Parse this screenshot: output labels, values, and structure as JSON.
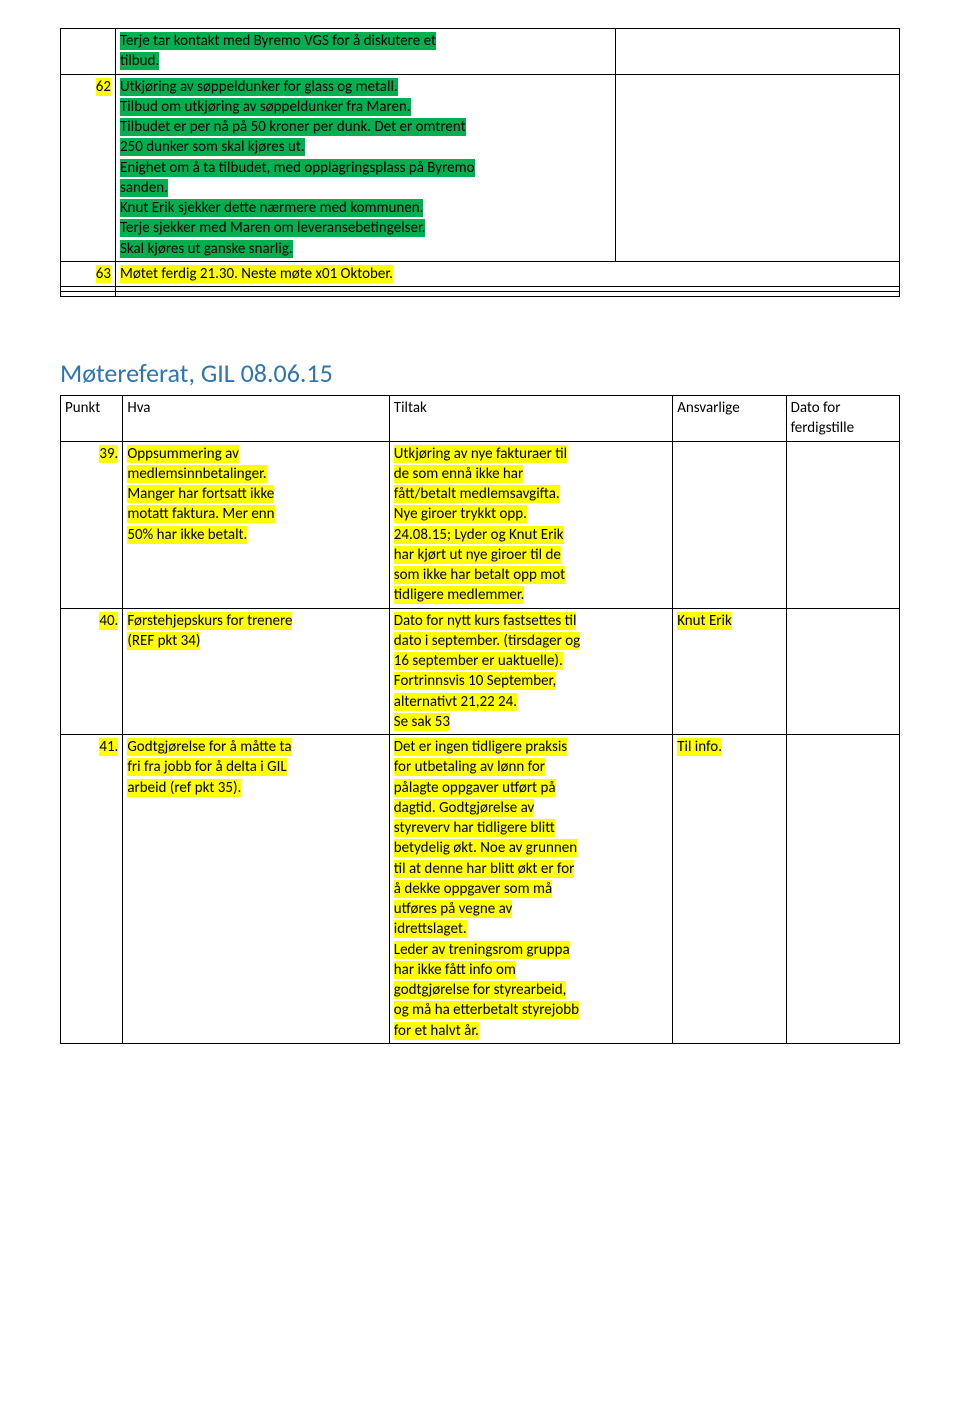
{
  "topTable": {
    "rows": [
      {
        "num": "",
        "cells": [
          {
            "segments": [
              {
                "text": "Terje tar kontakt med Byremo VGS for å diskutere et",
                "hl": "green"
              },
              {
                "br": true
              },
              {
                "text": "tilbud.",
                "hl": "green"
              }
            ]
          },
          {
            "segments": []
          }
        ]
      },
      {
        "num": "62",
        "numHl": "yellow",
        "cells": [
          {
            "segments": [
              {
                "text": "Utkjøring av søppeldunker for glass og metall.",
                "hl": "green"
              },
              {
                "br": true
              },
              {
                "text": "Tilbud om utkjøring av søppeldunker fra Maren.",
                "hl": "green"
              },
              {
                "br": true
              },
              {
                "text": "Tilbudet er per nå på 50 kroner per dunk. Det er omtrent",
                "hl": "green"
              },
              {
                "br": true
              },
              {
                "text": "250 dunker som skal kjøres ut.",
                "hl": "green"
              },
              {
                "br": true
              },
              {
                "text": "Enighet om å ta tilbudet, med opplagringsplass på Byremo",
                "hl": "green"
              },
              {
                "br": true
              },
              {
                "text": "sanden.",
                "hl": "green"
              },
              {
                "br": true
              },
              {
                "text": "Knut Erik sjekker dette nærmere med kommunen.",
                "hl": "green"
              },
              {
                "br": true
              },
              {
                "text": "Terje sjekker med Maren om leveransebetingelser.",
                "hl": "green"
              },
              {
                "br": true
              },
              {
                "text": "Skal kjøres ut ganske snarlig.",
                "hl": "green"
              }
            ]
          },
          {
            "segments": []
          }
        ]
      },
      {
        "num": "63",
        "numHl": "yellow",
        "cells": [
          {
            "segments": [
              {
                "text": "Møtet ferdig 21.30. Neste møte x01 Oktober.",
                "hl": "yellow"
              }
            ]
          },
          {
            "segments": []
          }
        ],
        "mergeRight": true
      },
      {
        "num": "",
        "cells": [
          {
            "segments": []
          },
          {
            "segments": []
          }
        ],
        "mergeRight": true
      },
      {
        "num": "",
        "cells": [
          {
            "segments": []
          },
          {
            "segments": []
          }
        ],
        "mergeRight": true
      }
    ]
  },
  "title": "Møtereferat, GIL 08.06.15",
  "bottomTable": {
    "headers": [
      "Punkt",
      "Hva",
      "Tiltak",
      "Ansvarlige",
      "Dato for ferdigstille"
    ],
    "rows": [
      {
        "num": "39.",
        "numHl": "yellow",
        "hva": [
          {
            "text": "Oppsummering av",
            "hl": "yellow"
          },
          {
            "br": true
          },
          {
            "text": "medlemsinnbetalinger.",
            "hl": "yellow"
          },
          {
            "br": true
          },
          {
            "text": "Manger har fortsatt ikke",
            "hl": "yellow"
          },
          {
            "br": true
          },
          {
            "text": "motatt faktura. Mer enn",
            "hl": "yellow"
          },
          {
            "br": true
          },
          {
            "text": "50% har ikke betalt.",
            "hl": "yellow"
          }
        ],
        "tiltak": [
          {
            "text": "Utkjøring av nye fakturaer til",
            "hl": "yellow"
          },
          {
            "br": true
          },
          {
            "text": "de som ennå ikke har",
            "hl": "yellow"
          },
          {
            "br": true
          },
          {
            "text": "fått/betalt medlemsavgifta.",
            "hl": "yellow"
          },
          {
            "br": true
          },
          {
            "text": "Nye giroer trykkt opp.",
            "hl": "yellow"
          },
          {
            "br": true
          },
          {
            "text": "24.08.15; Lyder og Knut Erik",
            "hl": "yellow"
          },
          {
            "br": true
          },
          {
            "text": "har kjørt ut nye giroer til de",
            "hl": "yellow"
          },
          {
            "br": true
          },
          {
            "text": "som ikke har betalt opp mot",
            "hl": "yellow"
          },
          {
            "br": true
          },
          {
            "text": "tidligere medlemmer.",
            "hl": "yellow"
          }
        ],
        "ansvar": [],
        "dato": []
      },
      {
        "num": "40.",
        "numHl": "yellow",
        "hva": [
          {
            "text": "Førstehjepskurs for trenere",
            "hl": "yellow"
          },
          {
            "br": true
          },
          {
            "text": "(REF pkt 34)",
            "hl": "yellow"
          }
        ],
        "tiltak": [
          {
            "text": "Dato for nytt kurs fastsettes til",
            "hl": "yellow"
          },
          {
            "br": true
          },
          {
            "text": "dato i september. (tirsdager og",
            "hl": "yellow"
          },
          {
            "br": true
          },
          {
            "text": "16 september er uaktuelle).",
            "hl": "yellow"
          },
          {
            "br": true
          },
          {
            "text": "Fortrinnsvis 10 September,",
            "hl": "yellow"
          },
          {
            "br": true
          },
          {
            "text": "alternativt 21,22 24.",
            "hl": "yellow"
          },
          {
            "br": true
          },
          {
            "text": "Se sak 53",
            "hl": "yellow"
          }
        ],
        "ansvar": [
          {
            "text": "Knut Erik",
            "hl": "yellow"
          }
        ],
        "dato": []
      },
      {
        "num": "41.",
        "numHl": "yellow",
        "hva": [
          {
            "text": "Godtgjørelse for å måtte ta",
            "hl": "yellow"
          },
          {
            "br": true
          },
          {
            "text": "fri fra jobb for å delta i GIL",
            "hl": "yellow"
          },
          {
            "br": true
          },
          {
            "text": "arbeid (ref pkt 35).",
            "hl": "yellow"
          }
        ],
        "tiltak": [
          {
            "text": "Det er ingen tidligere praksis",
            "hl": "yellow"
          },
          {
            "br": true
          },
          {
            "text": "for utbetaling av lønn for",
            "hl": "yellow"
          },
          {
            "br": true
          },
          {
            "text": "pålagte oppgaver utført på",
            "hl": "yellow"
          },
          {
            "br": true
          },
          {
            "text": "dagtid. Godtgjørelse av",
            "hl": "yellow"
          },
          {
            "br": true
          },
          {
            "text": "styreverv har tidligere blitt",
            "hl": "yellow"
          },
          {
            "br": true
          },
          {
            "text": "betydelig økt. Noe av grunnen",
            "hl": "yellow"
          },
          {
            "br": true
          },
          {
            "text": "til at denne har blitt økt er for",
            "hl": "yellow"
          },
          {
            "br": true
          },
          {
            "text": "å dekke oppgaver som må",
            "hl": "yellow"
          },
          {
            "br": true
          },
          {
            "text": "utføres på vegne av",
            "hl": "yellow"
          },
          {
            "br": true
          },
          {
            "text": "idrettslaget.",
            "hl": "yellow"
          },
          {
            "br": true
          },
          {
            "text": "Leder av treningsrom gruppa",
            "hl": "yellow"
          },
          {
            "br": true
          },
          {
            "text": "har ikke fått info om",
            "hl": "yellow"
          },
          {
            "br": true
          },
          {
            "text": "godtgjørelse for styrearbeid,",
            "hl": "yellow"
          },
          {
            "br": true
          },
          {
            "text": "og må ha etterbetalt styrejobb",
            "hl": "yellow"
          },
          {
            "br": true
          },
          {
            "text": "for et halvt år.",
            "hl": "yellow"
          }
        ],
        "ansvar": [
          {
            "text": "Til info.",
            "hl": "yellow"
          }
        ],
        "dato": []
      }
    ]
  }
}
